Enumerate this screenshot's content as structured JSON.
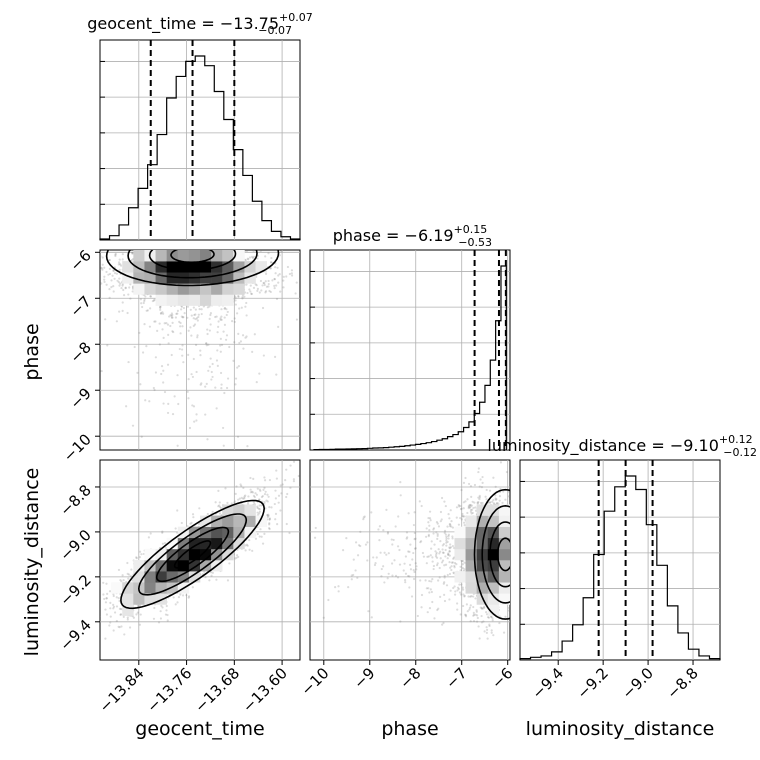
{
  "chart_data": {
    "type": "corner",
    "parameters": [
      {
        "name": "geocent_time",
        "title_prefix": "geocent_time = ",
        "median": "−13.75",
        "err_plus": "+0.07",
        "err_minus": "−0.07",
        "range": [
          -13.905,
          -13.57
        ],
        "ticks": [
          -13.84,
          -13.76,
          -13.68,
          -13.6
        ],
        "tick_labels": [
          "−13.84",
          "−13.76",
          "−13.68",
          "−13.60"
        ],
        "quantiles": [
          -13.82,
          -13.75,
          -13.68
        ]
      },
      {
        "name": "phase",
        "title_prefix": "phase = ",
        "median": "−6.19",
        "err_plus": "+0.15",
        "err_minus": "−0.53",
        "range": [
          -10.3,
          -5.95
        ],
        "ticks": [
          -10,
          -9,
          -8,
          -7,
          -6
        ],
        "tick_labels": [
          "−10",
          "−9",
          "−8",
          "−7",
          "−6"
        ],
        "quantiles": [
          -6.72,
          -6.19,
          -6.04
        ]
      },
      {
        "name": "luminosity_distance",
        "title_prefix": "luminosity_distance = ",
        "median": "−9.10",
        "err_plus": "+0.12",
        "err_minus": "−0.12",
        "range": [
          -9.57,
          -8.68
        ],
        "ticks": [
          -9.4,
          -9.2,
          -9.0,
          -8.8
        ],
        "tick_labels": [
          "−9.4",
          "−9.2",
          "−9.0",
          "−8.8"
        ],
        "quantiles": [
          -9.22,
          -9.1,
          -8.98
        ]
      }
    ],
    "hist_1d": {
      "geocent_time": [
        1,
        4,
        14,
        30,
        48,
        70,
        98,
        132,
        152,
        166,
        171,
        162,
        138,
        112,
        84,
        60,
        36,
        18,
        8,
        3,
        1
      ],
      "phase": [
        0.3,
        0.4,
        0.4,
        0.5,
        0.6,
        0.6,
        0.7,
        0.8,
        0.9,
        1,
        1.2,
        1.4,
        1.5,
        1.7,
        2,
        2.3,
        2.6,
        3,
        3.5,
        4,
        4.6,
        5.2,
        6,
        7,
        8,
        9.5,
        11,
        13,
        16,
        20,
        26,
        34,
        46,
        64,
        92,
        131
      ],
      "luminosity_distance": [
        1,
        2,
        3,
        6,
        14,
        26,
        46,
        78,
        110,
        128,
        136,
        126,
        100,
        70,
        40,
        20,
        8,
        3,
        1
      ]
    },
    "scatter_2d": {
      "phase_vs_geocent_time": {
        "x_mean": -13.75,
        "x_sd": 0.06,
        "y_mode": -6.15,
        "y_scale": 0.4,
        "rho": 0.0
      },
      "luminosity_distance_vs_geocent_time": {
        "x_mean": -13.75,
        "x_sd": 0.06,
        "y_mean": -9.1,
        "y_sd": 0.12,
        "rho": 0.85
      },
      "luminosity_distance_vs_phase": {
        "x_mode": -6.15,
        "x_scale": 0.4,
        "y_mean": -9.1,
        "y_sd": 0.12,
        "rho": 0.0
      }
    },
    "style": {
      "line_color": "#000000",
      "grid_color": "#b0b0b0",
      "point_color": "#808080"
    },
    "grid": true
  }
}
